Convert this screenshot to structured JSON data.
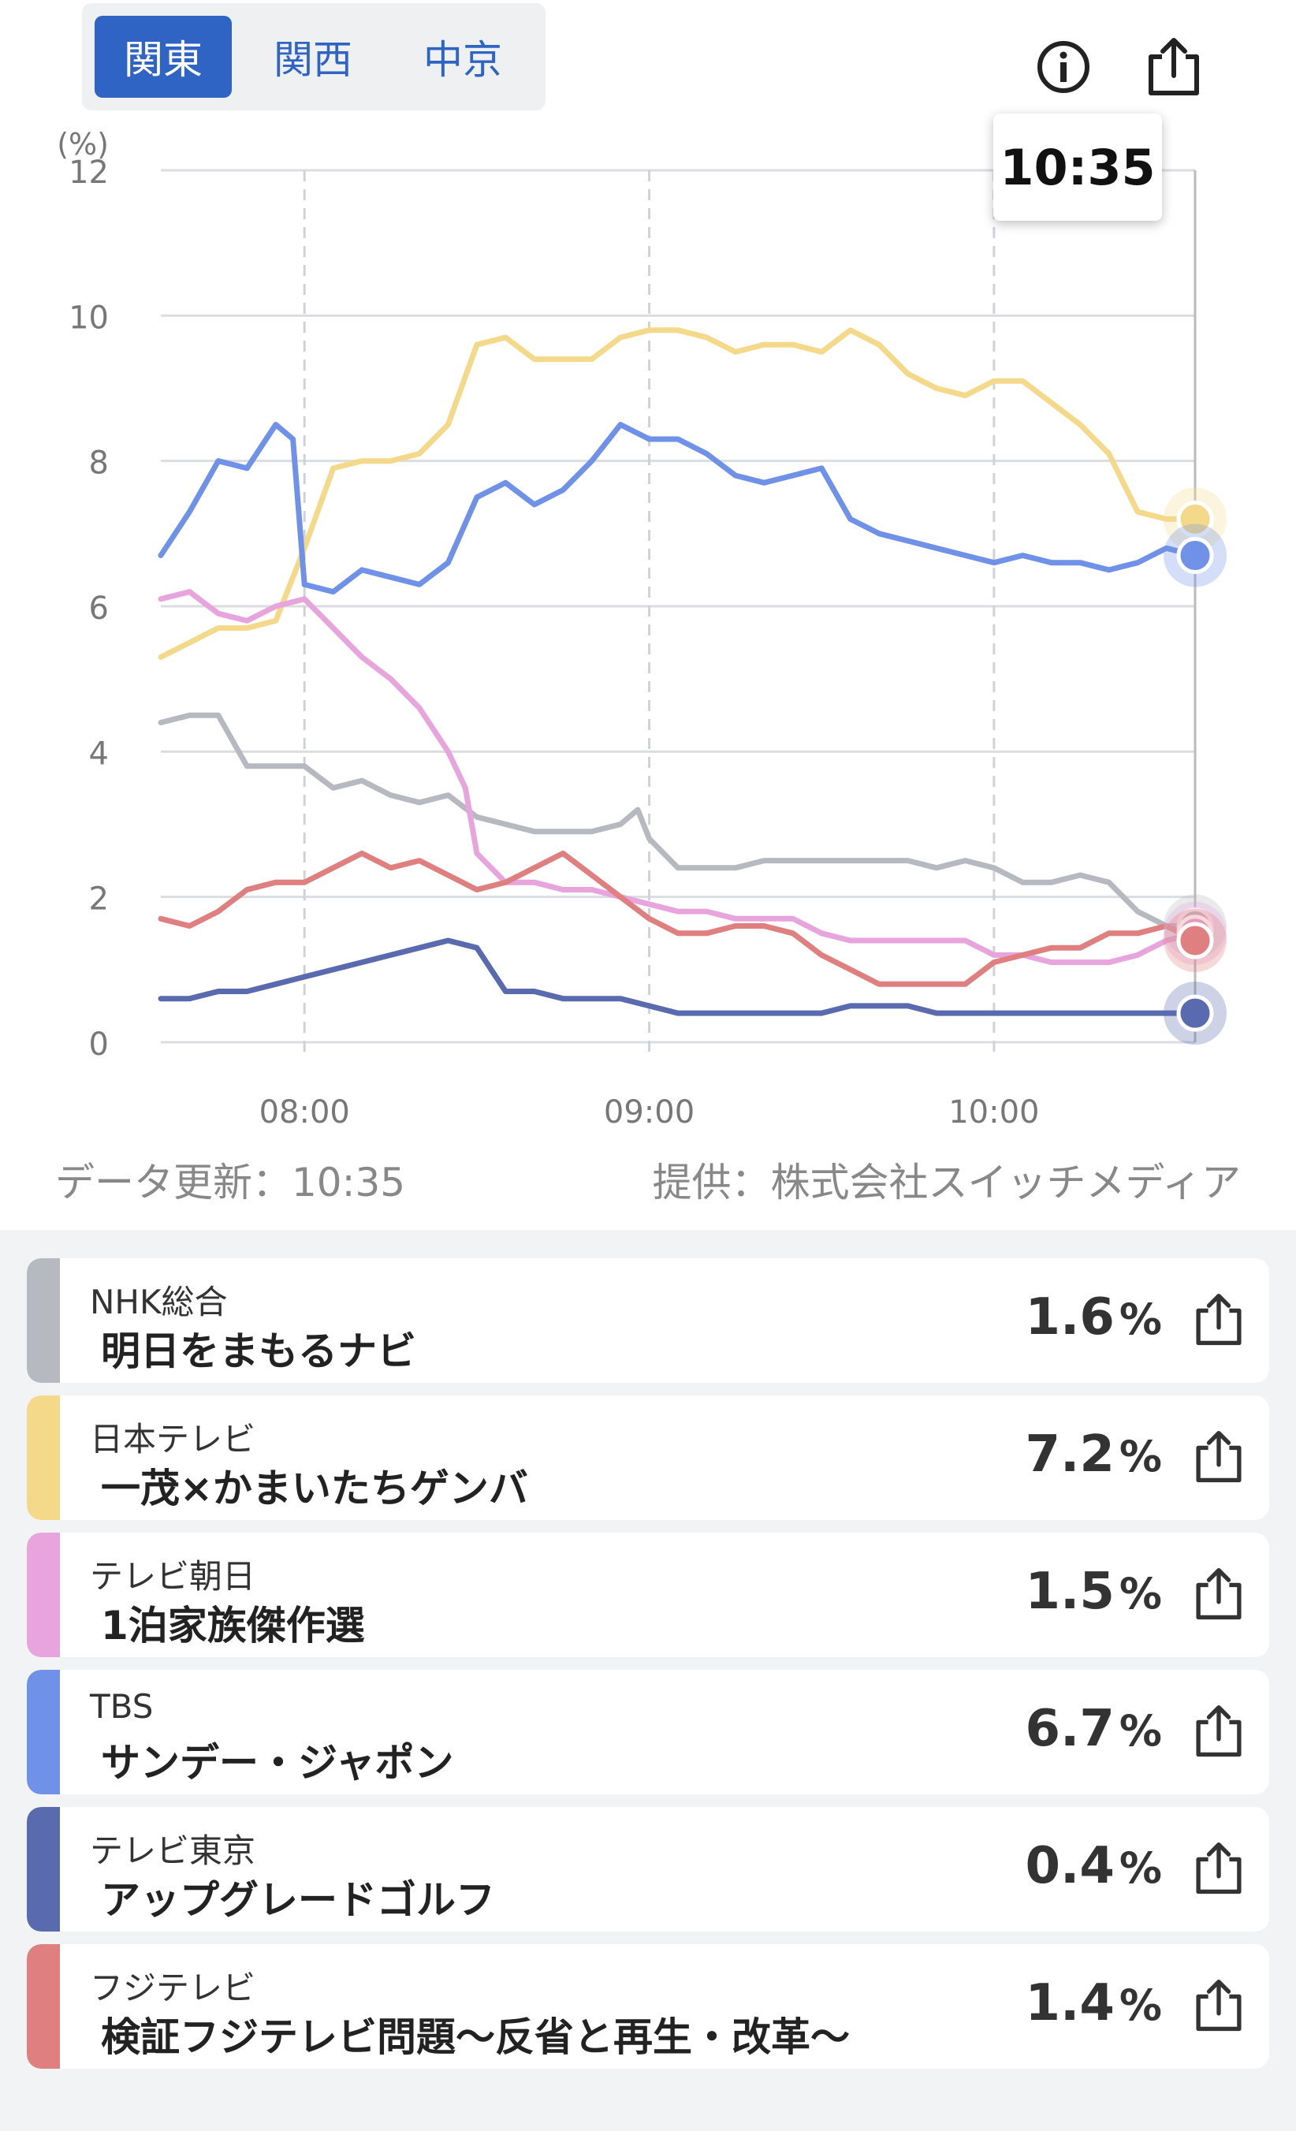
{
  "regions": {
    "tabs": [
      "関東",
      "関西",
      "中京"
    ],
    "active": 0
  },
  "header": {
    "info_icon": "info-icon",
    "share_icon": "share-icon"
  },
  "tooltip": {
    "time": "10:35"
  },
  "footer": {
    "updated": "データ更新：10:35",
    "provider": "提供：株式会社スイッチメディア"
  },
  "chart_data": {
    "type": "line",
    "unit_label": "(%)",
    "ylim": [
      0,
      12
    ],
    "yticks": [
      "0",
      "2",
      "4",
      "6",
      "8",
      "10",
      "12"
    ],
    "xlim": [
      "07:35",
      "10:35"
    ],
    "xticks": [
      "08:00",
      "09:00",
      "10:00"
    ],
    "grid": true,
    "cursor_x": "10:35",
    "series": [
      {
        "name": "NHK総合",
        "color": "#b6b9c0",
        "x": [
          "07:35",
          "07:40",
          "07:45",
          "07:50",
          "07:55",
          "08:00",
          "08:05",
          "08:10",
          "08:15",
          "08:20",
          "08:25",
          "08:30",
          "08:35",
          "08:40",
          "08:45",
          "08:50",
          "08:55",
          "08:58",
          "09:00",
          "09:05",
          "09:10",
          "09:15",
          "09:20",
          "09:25",
          "09:30",
          "09:35",
          "09:40",
          "09:45",
          "09:50",
          "09:55",
          "10:00",
          "10:05",
          "10:10",
          "10:15",
          "10:20",
          "10:25",
          "10:30",
          "10:35"
        ],
        "values": [
          4.4,
          4.5,
          4.5,
          3.8,
          3.8,
          3.8,
          3.5,
          3.6,
          3.4,
          3.3,
          3.4,
          3.1,
          3.0,
          2.9,
          2.9,
          2.9,
          3.0,
          3.2,
          2.8,
          2.4,
          2.4,
          2.4,
          2.5,
          2.5,
          2.5,
          2.5,
          2.5,
          2.5,
          2.4,
          2.5,
          2.4,
          2.2,
          2.2,
          2.3,
          2.2,
          1.8,
          1.6,
          1.6
        ]
      },
      {
        "name": "日本テレビ",
        "color": "#f5d98a",
        "x": [
          "07:35",
          "07:40",
          "07:45",
          "07:50",
          "07:55",
          "08:00",
          "08:05",
          "08:10",
          "08:15",
          "08:20",
          "08:25",
          "08:30",
          "08:35",
          "08:40",
          "08:45",
          "08:50",
          "08:55",
          "09:00",
          "09:05",
          "09:10",
          "09:15",
          "09:20",
          "09:25",
          "09:30",
          "09:35",
          "09:40",
          "09:45",
          "09:50",
          "09:55",
          "10:00",
          "10:05",
          "10:10",
          "10:15",
          "10:20",
          "10:25",
          "10:30",
          "10:35"
        ],
        "values": [
          5.3,
          5.5,
          5.7,
          5.7,
          5.8,
          6.8,
          7.9,
          8.0,
          8.0,
          8.1,
          8.5,
          9.6,
          9.7,
          9.4,
          9.4,
          9.4,
          9.7,
          9.8,
          9.8,
          9.7,
          9.5,
          9.6,
          9.6,
          9.5,
          9.8,
          9.6,
          9.2,
          9.0,
          8.9,
          9.1,
          9.1,
          8.8,
          8.5,
          8.1,
          7.3,
          7.2,
          7.2
        ]
      },
      {
        "name": "テレビ朝日",
        "color": "#e8a4dc",
        "x": [
          "07:35",
          "07:40",
          "07:45",
          "07:50",
          "07:55",
          "08:00",
          "08:05",
          "08:10",
          "08:15",
          "08:20",
          "08:25",
          "08:28",
          "08:30",
          "08:35",
          "08:40",
          "08:45",
          "08:50",
          "08:55",
          "09:00",
          "09:05",
          "09:10",
          "09:15",
          "09:20",
          "09:25",
          "09:30",
          "09:35",
          "09:40",
          "09:45",
          "09:50",
          "09:55",
          "10:00",
          "10:05",
          "10:10",
          "10:15",
          "10:20",
          "10:25",
          "10:30",
          "10:35"
        ],
        "values": [
          6.1,
          6.2,
          5.9,
          5.8,
          6.0,
          6.1,
          5.7,
          5.3,
          5.0,
          4.6,
          4.0,
          3.5,
          2.6,
          2.2,
          2.2,
          2.1,
          2.1,
          2.0,
          1.9,
          1.8,
          1.8,
          1.7,
          1.7,
          1.7,
          1.5,
          1.4,
          1.4,
          1.4,
          1.4,
          1.4,
          1.2,
          1.2,
          1.1,
          1.1,
          1.1,
          1.2,
          1.4,
          1.5
        ]
      },
      {
        "name": "TBS",
        "color": "#6f92e8",
        "x": [
          "07:35",
          "07:40",
          "07:45",
          "07:50",
          "07:55",
          "07:58",
          "08:00",
          "08:05",
          "08:10",
          "08:15",
          "08:20",
          "08:25",
          "08:30",
          "08:35",
          "08:40",
          "08:45",
          "08:50",
          "08:55",
          "09:00",
          "09:05",
          "09:10",
          "09:15",
          "09:20",
          "09:25",
          "09:30",
          "09:35",
          "09:40",
          "09:45",
          "09:50",
          "09:55",
          "10:00",
          "10:05",
          "10:10",
          "10:15",
          "10:20",
          "10:25",
          "10:30",
          "10:35"
        ],
        "values": [
          6.7,
          7.3,
          8.0,
          7.9,
          8.5,
          8.3,
          6.3,
          6.2,
          6.5,
          6.4,
          6.3,
          6.6,
          7.5,
          7.7,
          7.4,
          7.6,
          8.0,
          8.5,
          8.3,
          8.3,
          8.1,
          7.8,
          7.7,
          7.8,
          7.9,
          7.2,
          7.0,
          6.9,
          6.8,
          6.7,
          6.6,
          6.7,
          6.6,
          6.6,
          6.5,
          6.6,
          6.8,
          6.7
        ]
      },
      {
        "name": "テレビ東京",
        "color": "#5a6aae",
        "x": [
          "07:35",
          "07:40",
          "07:45",
          "07:50",
          "07:55",
          "08:00",
          "08:05",
          "08:10",
          "08:15",
          "08:20",
          "08:25",
          "08:30",
          "08:35",
          "08:40",
          "08:45",
          "08:50",
          "08:55",
          "09:00",
          "09:05",
          "09:10",
          "09:15",
          "09:20",
          "09:25",
          "09:30",
          "09:35",
          "09:40",
          "09:45",
          "09:50",
          "09:55",
          "10:00",
          "10:05",
          "10:10",
          "10:15",
          "10:20",
          "10:25",
          "10:30",
          "10:35"
        ],
        "values": [
          0.6,
          0.6,
          0.7,
          0.7,
          0.8,
          0.9,
          1.0,
          1.1,
          1.2,
          1.3,
          1.4,
          1.3,
          0.7,
          0.7,
          0.6,
          0.6,
          0.6,
          0.5,
          0.4,
          0.4,
          0.4,
          0.4,
          0.4,
          0.4,
          0.5,
          0.5,
          0.5,
          0.4,
          0.4,
          0.4,
          0.4,
          0.4,
          0.4,
          0.4,
          0.4,
          0.4,
          0.4
        ]
      },
      {
        "name": "フジテレビ",
        "color": "#e07f7f",
        "x": [
          "07:35",
          "07:40",
          "07:45",
          "07:50",
          "07:55",
          "08:00",
          "08:05",
          "08:10",
          "08:15",
          "08:20",
          "08:25",
          "08:30",
          "08:35",
          "08:40",
          "08:45",
          "08:50",
          "08:55",
          "09:00",
          "09:05",
          "09:10",
          "09:15",
          "09:20",
          "09:25",
          "09:30",
          "09:35",
          "09:40",
          "09:45",
          "09:50",
          "09:55",
          "10:00",
          "10:05",
          "10:10",
          "10:15",
          "10:20",
          "10:25",
          "10:30",
          "10:35"
        ],
        "values": [
          1.7,
          1.6,
          1.8,
          2.1,
          2.2,
          2.2,
          2.4,
          2.6,
          2.4,
          2.5,
          2.3,
          2.1,
          2.2,
          2.4,
          2.6,
          2.3,
          2.0,
          1.7,
          1.5,
          1.5,
          1.6,
          1.6,
          1.5,
          1.2,
          1.0,
          0.8,
          0.8,
          0.8,
          0.8,
          1.1,
          1.2,
          1.3,
          1.3,
          1.5,
          1.5,
          1.6,
          1.4
        ]
      }
    ]
  },
  "channels": [
    {
      "channel": "NHK総合",
      "program": "明日をまもるナビ",
      "rating": "1.6",
      "unit": "%",
      "color": "#b6b9c0"
    },
    {
      "channel": "日本テレビ",
      "program": "一茂×かまいたちゲンバ",
      "rating": "7.2",
      "unit": "%",
      "color": "#f5d98a"
    },
    {
      "channel": "テレビ朝日",
      "program": "1泊家族傑作選",
      "rating": "1.5",
      "unit": "%",
      "color": "#e8a4dc"
    },
    {
      "channel": "TBS",
      "program": "サンデー・ジャポン",
      "rating": "6.7",
      "unit": "%",
      "color": "#6f92e8"
    },
    {
      "channel": "テレビ東京",
      "program": "アップグレードゴルフ",
      "rating": "0.4",
      "unit": "%",
      "color": "#5a6aae"
    },
    {
      "channel": "フジテレビ",
      "program": "検証フジテレビ問題～反省と再生・改革～",
      "rating": "1.4",
      "unit": "%",
      "color": "#e07f7f"
    }
  ]
}
